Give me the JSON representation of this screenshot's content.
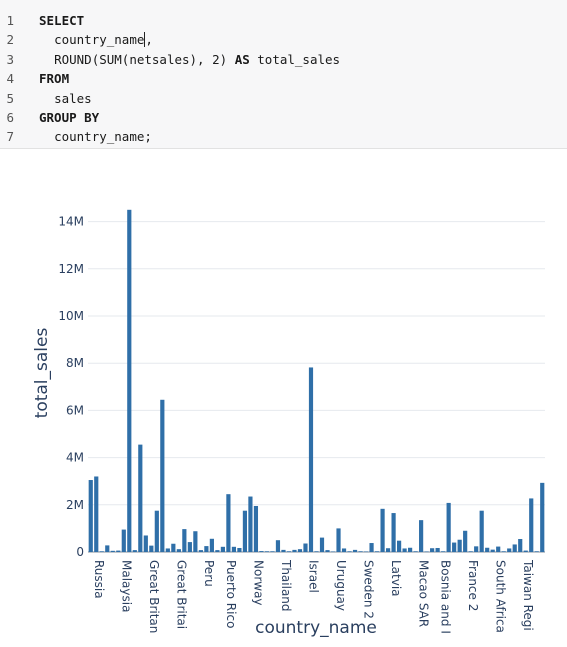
{
  "editor": {
    "lines": [
      {
        "num": "1",
        "indent": "",
        "parts": [
          {
            "t": "SELECT",
            "kw": true
          }
        ]
      },
      {
        "num": "2",
        "indent": "  ",
        "parts": [
          {
            "t": "country_name",
            "kw": false
          },
          {
            "t": "|",
            "caret": true
          },
          {
            "t": ",",
            "kw": false
          }
        ]
      },
      {
        "num": "3",
        "indent": "  ",
        "parts": [
          {
            "t": "ROUND(SUM(netsales), 2) ",
            "kw": false
          },
          {
            "t": "AS",
            "kw": true
          },
          {
            "t": " total_sales",
            "kw": false
          }
        ]
      },
      {
        "num": "4",
        "indent": "",
        "parts": [
          {
            "t": "FROM",
            "kw": true
          }
        ]
      },
      {
        "num": "5",
        "indent": "  ",
        "parts": [
          {
            "t": "sales",
            "kw": false
          }
        ]
      },
      {
        "num": "6",
        "indent": "",
        "parts": [
          {
            "t": "GROUP BY",
            "kw": true
          }
        ]
      },
      {
        "num": "7",
        "indent": "  ",
        "parts": [
          {
            "t": "country_name;",
            "kw": false
          }
        ]
      }
    ]
  },
  "chart_data": {
    "type": "bar",
    "xlabel": "country_name",
    "ylabel": "total_sales",
    "ylim": [
      0,
      15000000
    ],
    "yticks": [
      0,
      2000000,
      4000000,
      6000000,
      8000000,
      10000000,
      12000000,
      14000000
    ],
    "ytick_labels": [
      "0",
      "2M",
      "4M",
      "6M",
      "8M",
      "10M",
      "12M",
      "14M"
    ],
    "grid": true,
    "bar_color": "#2f6fa8",
    "xtick_labels": [
      "Russia",
      "Malaysia",
      "Great Britan",
      "Great Britai",
      "Peru",
      "Puerto Rico",
      "Norway",
      "Thailand",
      "Israel",
      "Uruguay",
      "Sweden 2",
      "Latvia",
      "Macao SAR",
      "Bosnia and I",
      "France 2",
      "South Africa",
      "Taiwan Regi"
    ],
    "values": [
      3050000,
      3200000,
      30000,
      280000,
      50000,
      60000,
      950000,
      14500000,
      80000,
      4550000,
      700000,
      270000,
      1750000,
      6450000,
      150000,
      350000,
      120000,
      970000,
      420000,
      880000,
      80000,
      250000,
      560000,
      80000,
      220000,
      2450000,
      220000,
      170000,
      1750000,
      2350000,
      1950000,
      40000,
      30000,
      30000,
      500000,
      90000,
      30000,
      90000,
      120000,
      360000,
      7820000,
      30000,
      610000,
      80000,
      20000,
      1000000,
      150000,
      30000,
      90000,
      30000,
      20000,
      380000,
      30000,
      1830000,
      160000,
      1650000,
      480000,
      150000,
      180000,
      30000,
      1350000,
      20000,
      160000,
      170000,
      30000,
      2080000,
      400000,
      520000,
      900000,
      30000,
      240000,
      1750000,
      180000,
      100000,
      230000,
      30000,
      150000,
      320000,
      550000,
      60000,
      2270000,
      30000,
      2930000
    ]
  }
}
